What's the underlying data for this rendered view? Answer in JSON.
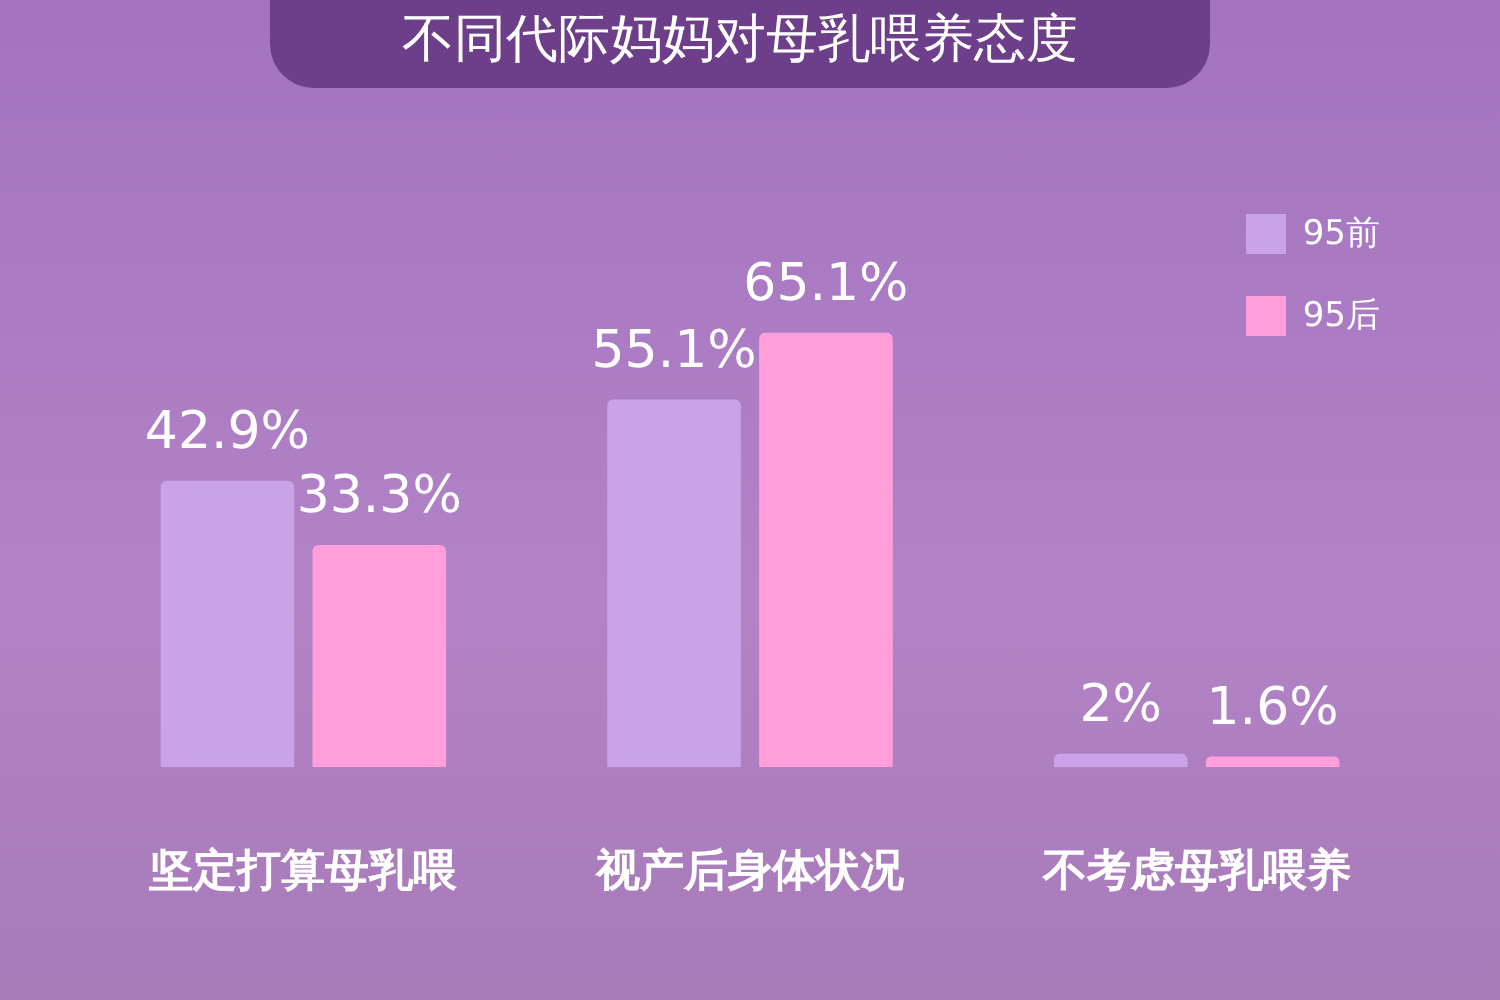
{
  "chart_data": {
    "type": "bar",
    "title": "不同代际妈妈对母乳喂养态度",
    "categories": [
      "坚定打算母乳喂",
      "视产后身体状况",
      "不考虑母乳喂养"
    ],
    "series": [
      {
        "name": "95前",
        "color": "#c9a2e8",
        "values": [
          42.9,
          55.1,
          2
        ],
        "value_labels": [
          "42.9%",
          "55.1%",
          "2%"
        ]
      },
      {
        "name": "95后",
        "color": "#ff9ed8",
        "values": [
          33.3,
          65.1,
          1.6
        ],
        "value_labels": [
          "33.3%",
          "65.1%",
          "1.6%"
        ]
      }
    ],
    "legend": "top right",
    "grid": false
  }
}
